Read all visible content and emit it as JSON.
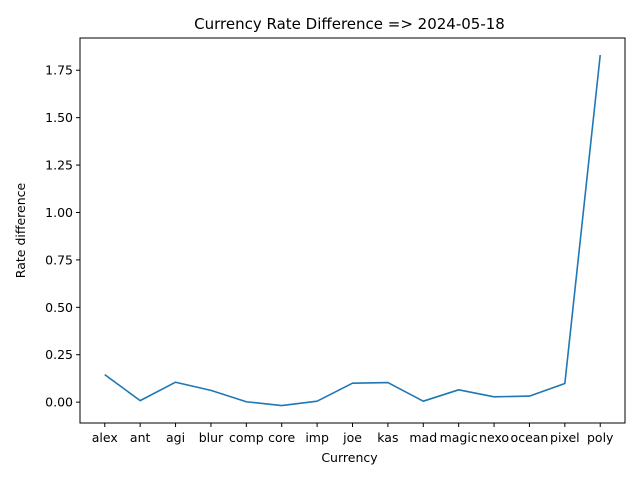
{
  "chart_data": {
    "type": "line",
    "title": "Currency Rate Difference => 2024-05-18",
    "xlabel": "Currency",
    "ylabel": "Rate difference",
    "categories": [
      "alex",
      "ant",
      "agi",
      "blur",
      "comp",
      "core",
      "imp",
      "joe",
      "kas",
      "mad",
      "magic",
      "nexo",
      "ocean",
      "pixel",
      "poly"
    ],
    "series": [
      {
        "values": [
          0.145,
          0.008,
          0.105,
          0.062,
          0.002,
          -0.018,
          0.005,
          0.1,
          0.103,
          0.005,
          0.065,
          0.028,
          0.032,
          0.098,
          1.83
        ]
      }
    ],
    "ylim": [
      -0.11,
      1.92
    ],
    "yticks": [
      0.0,
      0.25,
      0.5,
      0.75,
      1.0,
      1.25,
      1.5,
      1.75
    ],
    "ytick_labels": [
      "0.00",
      "0.25",
      "0.50",
      "0.75",
      "1.00",
      "1.25",
      "1.50",
      "1.75"
    ],
    "grid": false,
    "line_color": "#1f77b4"
  }
}
